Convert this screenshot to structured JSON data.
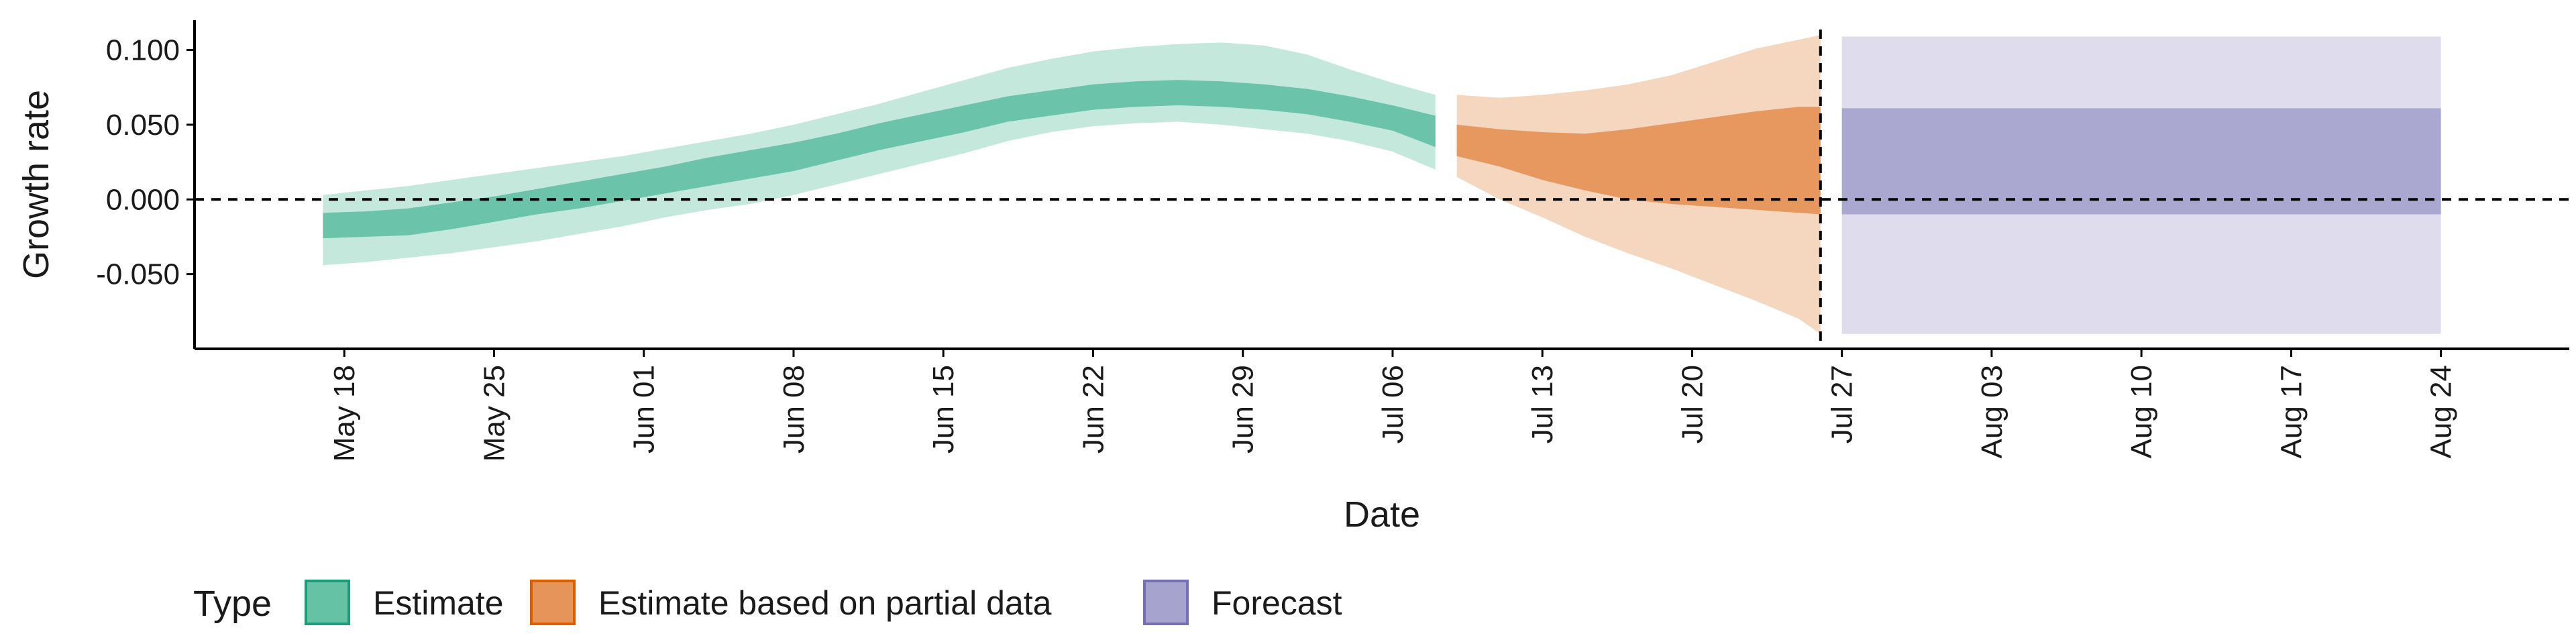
{
  "chart_data": {
    "type": "area",
    "xlabel": "Date",
    "ylabel": "Growth rate",
    "x_axis": {
      "type": "date",
      "range": [
        "2020-05-11",
        "2020-08-30"
      ],
      "ticks": [
        "2020-05-18",
        "2020-05-25",
        "2020-06-01",
        "2020-06-08",
        "2020-06-15",
        "2020-06-22",
        "2020-06-29",
        "2020-07-06",
        "2020-07-13",
        "2020-07-20",
        "2020-07-27",
        "2020-08-03",
        "2020-08-10",
        "2020-08-17",
        "2020-08-24"
      ],
      "tick_labels": [
        "May 18",
        "May 25",
        "Jun 01",
        "Jun 08",
        "Jun 15",
        "Jun 22",
        "Jun 29",
        "Jul 06",
        "Jul 13",
        "Jul 20",
        "Jul 27",
        "Aug 03",
        "Aug 10",
        "Aug 17",
        "Aug 24"
      ]
    },
    "y_axis": {
      "range": [
        -0.1,
        0.12
      ],
      "ticks": [
        -0.05,
        0.0,
        0.05,
        0.1
      ],
      "tick_labels": [
        "-0.050",
        "0.000",
        "0.050",
        "0.100"
      ]
    },
    "reference_lines": [
      {
        "axis": "y",
        "value": 0,
        "style": "dashed"
      },
      {
        "axis": "x",
        "value": "2020-07-26",
        "style": "dashed"
      }
    ],
    "legend": {
      "title": "Type",
      "position": "bottom",
      "entries": [
        {
          "label": "Estimate",
          "color": "#66c2a5",
          "border": "#1b9e77"
        },
        {
          "label": "Estimate based on partial data",
          "color": "#e6955a",
          "border": "#d95f02"
        },
        {
          "label": "Forecast",
          "color": "#a7a3cf",
          "border": "#7570b3"
        }
      ]
    },
    "series": [
      {
        "name": "Estimate",
        "color": "#66c2a5",
        "x": [
          "2020-05-17",
          "2020-05-19",
          "2020-05-21",
          "2020-05-23",
          "2020-05-25",
          "2020-05-27",
          "2020-05-29",
          "2020-05-31",
          "2020-06-02",
          "2020-06-04",
          "2020-06-06",
          "2020-06-08",
          "2020-06-10",
          "2020-06-12",
          "2020-06-14",
          "2020-06-16",
          "2020-06-18",
          "2020-06-20",
          "2020-06-22",
          "2020-06-24",
          "2020-06-26",
          "2020-06-28",
          "2020-06-30",
          "2020-07-02",
          "2020-07-04",
          "2020-07-06",
          "2020-07-08"
        ],
        "lower_90": [
          -0.044,
          -0.042,
          -0.039,
          -0.036,
          -0.032,
          -0.028,
          -0.023,
          -0.018,
          -0.012,
          -0.007,
          -0.003,
          0.003,
          0.01,
          0.017,
          0.024,
          0.031,
          0.039,
          0.045,
          0.049,
          0.051,
          0.052,
          0.05,
          0.047,
          0.044,
          0.039,
          0.032,
          0.02
        ],
        "lower_50": [
          -0.026,
          -0.025,
          -0.024,
          -0.02,
          -0.015,
          -0.01,
          -0.006,
          -0.001,
          0.004,
          0.009,
          0.014,
          0.019,
          0.026,
          0.033,
          0.039,
          0.045,
          0.052,
          0.056,
          0.06,
          0.062,
          0.063,
          0.062,
          0.06,
          0.057,
          0.052,
          0.046,
          0.035
        ],
        "upper_50": [
          -0.009,
          -0.008,
          -0.006,
          -0.002,
          0.002,
          0.007,
          0.012,
          0.017,
          0.022,
          0.028,
          0.033,
          0.038,
          0.044,
          0.051,
          0.057,
          0.063,
          0.069,
          0.073,
          0.077,
          0.079,
          0.08,
          0.079,
          0.077,
          0.074,
          0.069,
          0.063,
          0.056
        ],
        "upper_90": [
          0.003,
          0.006,
          0.009,
          0.013,
          0.017,
          0.021,
          0.025,
          0.029,
          0.034,
          0.039,
          0.044,
          0.05,
          0.057,
          0.064,
          0.072,
          0.08,
          0.088,
          0.094,
          0.099,
          0.102,
          0.104,
          0.105,
          0.103,
          0.097,
          0.087,
          0.078,
          0.07
        ]
      },
      {
        "name": "Estimate based on partial data",
        "color": "#e6955a",
        "x": [
          "2020-07-09",
          "2020-07-11",
          "2020-07-13",
          "2020-07-15",
          "2020-07-17",
          "2020-07-19",
          "2020-07-21",
          "2020-07-23",
          "2020-07-25",
          "2020-07-26"
        ],
        "lower_90": [
          0.015,
          0.0,
          -0.012,
          -0.025,
          -0.036,
          -0.046,
          -0.057,
          -0.068,
          -0.08,
          -0.09
        ],
        "lower_50": [
          0.029,
          0.022,
          0.013,
          0.006,
          0.0,
          -0.003,
          -0.005,
          -0.007,
          -0.009,
          -0.01
        ],
        "upper_50": [
          0.05,
          0.047,
          0.045,
          0.044,
          0.047,
          0.051,
          0.055,
          0.059,
          0.062,
          0.062
        ],
        "upper_90": [
          0.07,
          0.068,
          0.07,
          0.073,
          0.077,
          0.083,
          0.092,
          0.101,
          0.107,
          0.11
        ]
      },
      {
        "name": "Forecast",
        "color": "#a7a3cf",
        "x": [
          "2020-07-27",
          "2020-08-24"
        ],
        "lower_90": [
          -0.09,
          -0.09
        ],
        "lower_50": [
          -0.01,
          -0.01
        ],
        "upper_50": [
          0.061,
          0.061
        ],
        "upper_90": [
          0.109,
          0.109
        ]
      }
    ]
  }
}
